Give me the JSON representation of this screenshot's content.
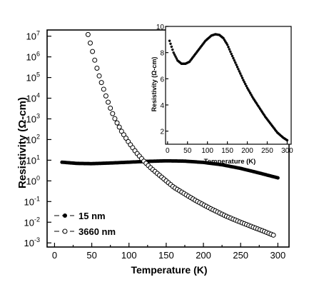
{
  "chart_data": [
    {
      "type": "scatter",
      "title": "",
      "xlabel": "Temperature (K)",
      "ylabel": "Resistivity (Ω-cm)",
      "xlim": [
        -10,
        315
      ],
      "ylim": [
        -3.2,
        7.3
      ],
      "yscale": "log",
      "x_ticks": [
        "0",
        "50",
        "100",
        "150",
        "200",
        "250",
        "300"
      ],
      "y_ticks": [
        {
          "base": "10",
          "exp": "7"
        },
        {
          "base": "10",
          "exp": "6"
        },
        {
          "base": "10",
          "exp": "5"
        },
        {
          "base": "10",
          "exp": "4"
        },
        {
          "base": "10",
          "exp": "3"
        },
        {
          "base": "10",
          "exp": "2"
        },
        {
          "base": "10",
          "exp": "1"
        },
        {
          "base": "10",
          "exp": "0"
        },
        {
          "base": "10",
          "exp": "-1"
        },
        {
          "base": "10",
          "exp": "-2"
        },
        {
          "base": "10",
          "exp": "-3"
        }
      ],
      "legend_position": "bottom-left",
      "series": [
        {
          "name": "15 nm",
          "marker": "filled-circle",
          "color": "#000000",
          "x": [
            10,
            30,
            50,
            75,
            100,
            125,
            150,
            175,
            200,
            225,
            250,
            275,
            300
          ],
          "y": [
            8,
            7,
            6.8,
            7.3,
            8,
            8.8,
            9.3,
            9,
            7.8,
            6,
            4,
            2.4,
            1.4
          ]
        },
        {
          "name": "3660 nm",
          "marker": "open-circle",
          "color": "#000000",
          "x": [
            45,
            50,
            55,
            60,
            65,
            70,
            75,
            80,
            90,
            100,
            110,
            120,
            130,
            140,
            150,
            160,
            170,
            180,
            190,
            200,
            210,
            220,
            230,
            240,
            250,
            260,
            270,
            280,
            290,
            295
          ],
          "y": [
            12000000.0,
            2500000.0,
            500000.0,
            120000.0,
            35000.0,
            10000.0,
            3300,
            1200,
            250,
            70,
            23,
            9,
            4,
            2,
            1,
            0.5,
            0.3,
            0.18,
            0.11,
            0.07,
            0.045,
            0.03,
            0.02,
            0.014,
            0.01,
            0.0072,
            0.0052,
            0.0038,
            0.0027,
            0.0023
          ]
        }
      ]
    },
    {
      "type": "scatter",
      "title": "",
      "xlabel": "Temperature (K)",
      "ylabel": "Resistivity (Ω-cm)",
      "xlim": [
        -5,
        310
      ],
      "ylim": [
        1,
        10
      ],
      "x_ticks": [
        "0",
        "50",
        "100",
        "150",
        "200",
        "250",
        "300"
      ],
      "y_ticks": [
        "2",
        "4",
        "6",
        "8",
        "10"
      ],
      "series": [
        {
          "marker": "filled-circle",
          "color": "#000000",
          "x": [
            5,
            15,
            25,
            35,
            45,
            55,
            65,
            80,
            95,
            110,
            120,
            130,
            140,
            150,
            160,
            175,
            190,
            200,
            215,
            230,
            245,
            260,
            275,
            290,
            300
          ],
          "y": [
            8.9,
            8.0,
            7.4,
            7.15,
            7.15,
            7.3,
            7.7,
            8.3,
            8.9,
            9.3,
            9.4,
            9.35,
            9.1,
            8.6,
            7.9,
            6.9,
            5.9,
            5.3,
            4.5,
            3.8,
            3.1,
            2.5,
            1.9,
            1.5,
            1.3
          ]
        }
      ]
    }
  ]
}
